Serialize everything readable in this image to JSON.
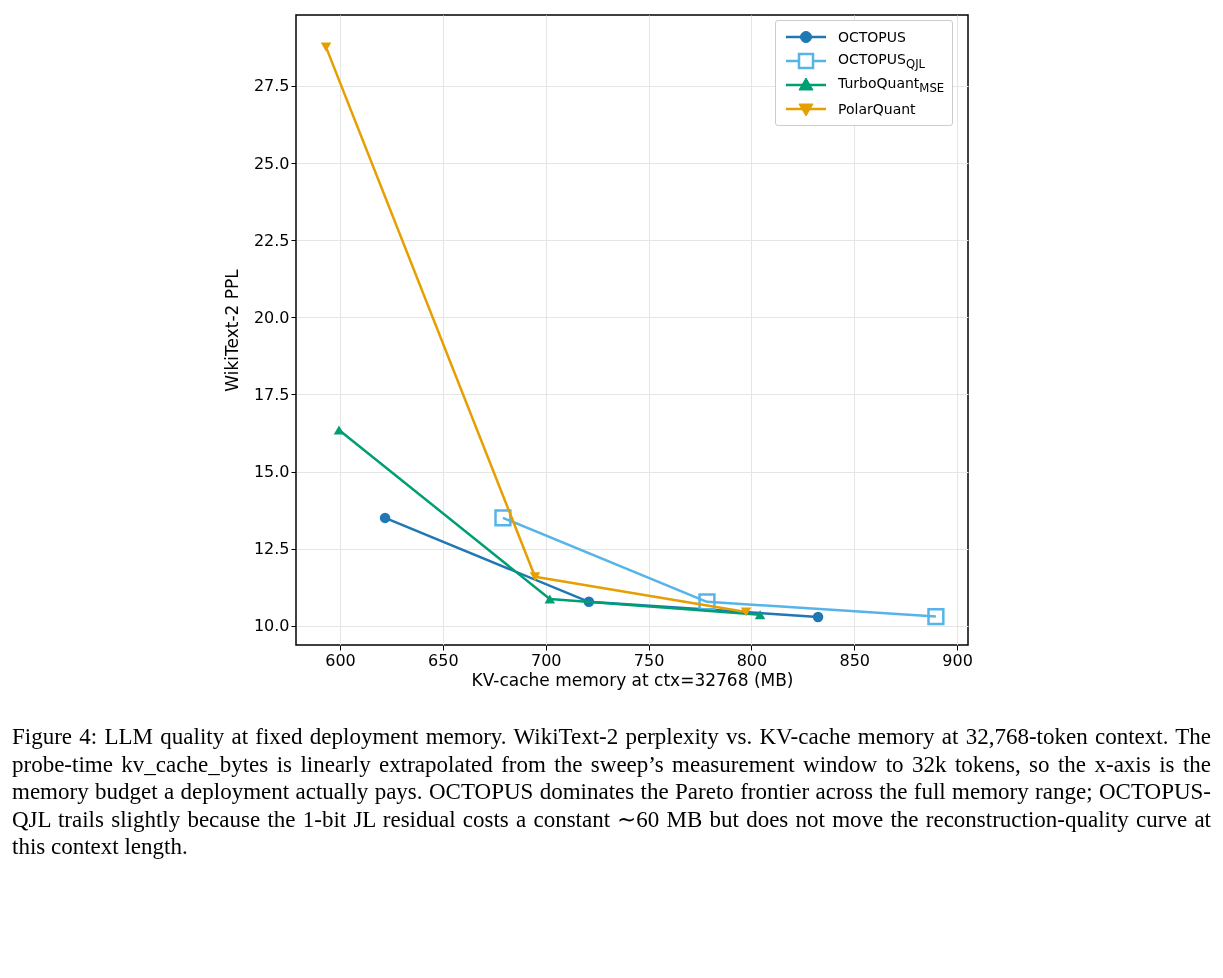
{
  "chart_data": {
    "type": "line",
    "xlabel": "KV-cache memory at ctx=32768 (MB)",
    "ylabel": "WikiText-2 PPL",
    "xlim": [
      578.6,
      905.3
    ],
    "ylim": [
      9.38,
      29.8
    ],
    "xticks": [
      600,
      650,
      700,
      750,
      800,
      850,
      900
    ],
    "yticks": [
      {
        "value": 10,
        "label": "10.0"
      },
      12.5,
      {
        "value": 15,
        "label": "15.0"
      },
      17.5,
      {
        "value": 20,
        "label": "20.0"
      },
      22.5,
      {
        "value": 25,
        "label": "25.0"
      },
      27.5
    ],
    "grid": true,
    "legend": "top right",
    "line_style": "solid",
    "series": [
      {
        "name": "OCTOPUS",
        "color": "#1f77b4",
        "marker": "circle",
        "x": [
          621.9,
          721,
          832.4
        ],
        "values": [
          13.5,
          10.78,
          10.29
        ]
      },
      {
        "name": "OCTOPUS$_{QJL}$",
        "color": "#56b4e9",
        "marker": "square",
        "x": [
          679.2,
          778.4,
          889.7
        ],
        "values": [
          13.5,
          10.78,
          10.3
        ]
      },
      {
        "name": "TurboQuant$_{MSE}$",
        "color": "#009e73",
        "marker": "triangle",
        "x": [
          599.5,
          702,
          804.2
        ],
        "values": [
          16.35,
          10.87,
          10.36
        ]
      },
      {
        "name": "PolarQuant",
        "color": "#e69f00",
        "marker": "triangle-down",
        "x": [
          593.2,
          694.8,
          797.4
        ],
        "values": [
          28.76,
          11.59,
          10.45
        ]
      }
    ],
    "annotations": [
      "Figure 4: LLM quality at fixed deployment memory. WikiText-2 perplexity vs. KV-cache memory at 32,768-token context. The probe-time kv_cache_bytes is linearly extrapolated from the sweep’s measurement window to 32k tokens, so the x-axis is the memory budget a deployment actually pays. OCTOPUS dominates the Pareto frontier across the full memory range; OCTOPUS-QJL trails slightly because the 1-bit JL residual costs a constant ∼60 MB but does not move the reconstruction-quality curve at this context length."
    ]
  }
}
